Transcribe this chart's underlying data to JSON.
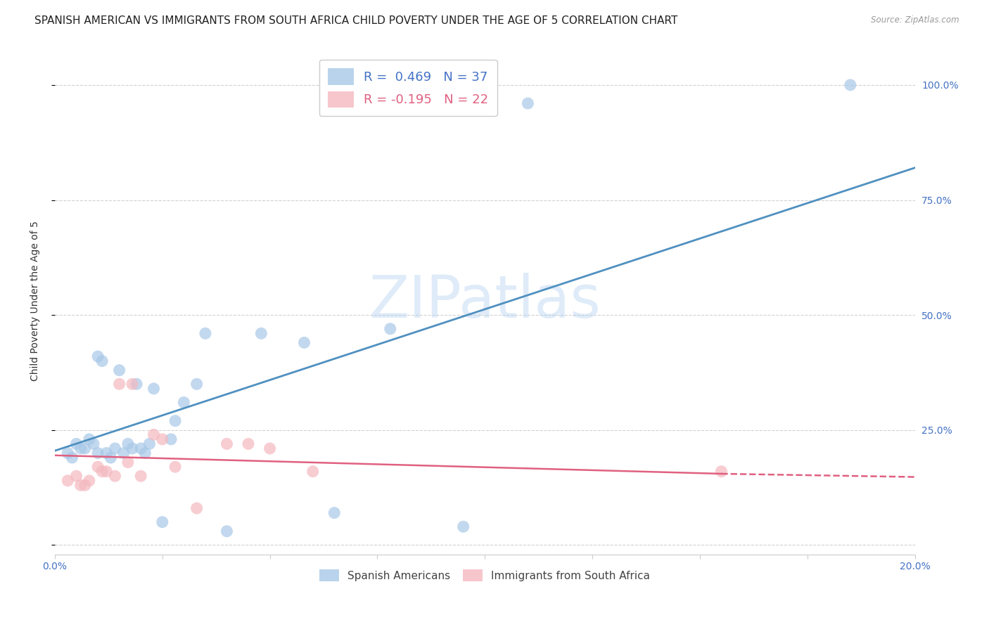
{
  "title": "SPANISH AMERICAN VS IMMIGRANTS FROM SOUTH AFRICA CHILD POVERTY UNDER THE AGE OF 5 CORRELATION CHART",
  "source": "Source: ZipAtlas.com",
  "ylabel": "Child Poverty Under the Age of 5",
  "xlim": [
    0.0,
    0.2
  ],
  "ylim": [
    -0.02,
    1.08
  ],
  "legend1_label": "R =  0.469   N = 37",
  "legend2_label": "R = -0.195   N = 22",
  "legend1_color": "#a8c8e8",
  "legend2_color": "#f4b8c0",
  "scatter1_color": "#a8c8e8",
  "scatter2_color": "#f4b8c0",
  "line1_color": "#4f90c0",
  "line2_color": "#e06080",
  "watermark": "ZIPatlas",
  "blue_scatter_x": [
    0.003,
    0.004,
    0.005,
    0.006,
    0.007,
    0.008,
    0.009,
    0.01,
    0.01,
    0.011,
    0.012,
    0.013,
    0.014,
    0.015,
    0.016,
    0.017,
    0.018,
    0.019,
    0.02,
    0.021,
    0.022,
    0.023,
    0.025,
    0.027,
    0.028,
    0.03,
    0.033,
    0.035,
    0.04,
    0.048,
    0.058,
    0.065,
    0.078,
    0.095,
    0.1,
    0.11,
    0.185
  ],
  "blue_scatter_y": [
    0.2,
    0.19,
    0.22,
    0.21,
    0.21,
    0.23,
    0.22,
    0.2,
    0.41,
    0.4,
    0.2,
    0.19,
    0.21,
    0.38,
    0.2,
    0.22,
    0.21,
    0.35,
    0.21,
    0.2,
    0.22,
    0.34,
    0.05,
    0.23,
    0.27,
    0.31,
    0.35,
    0.46,
    0.03,
    0.46,
    0.44,
    0.07,
    0.47,
    0.04,
    0.97,
    0.96,
    1.0
  ],
  "pink_scatter_x": [
    0.003,
    0.005,
    0.006,
    0.007,
    0.008,
    0.01,
    0.011,
    0.012,
    0.014,
    0.015,
    0.017,
    0.018,
    0.02,
    0.023,
    0.025,
    0.028,
    0.033,
    0.04,
    0.045,
    0.05,
    0.06,
    0.155
  ],
  "pink_scatter_y": [
    0.14,
    0.15,
    0.13,
    0.13,
    0.14,
    0.17,
    0.16,
    0.16,
    0.15,
    0.35,
    0.18,
    0.35,
    0.15,
    0.24,
    0.23,
    0.17,
    0.08,
    0.22,
    0.22,
    0.21,
    0.16,
    0.16
  ],
  "line1_x0": 0.0,
  "line1_y0": 0.205,
  "line1_x1": 0.2,
  "line1_y1": 0.82,
  "line2_solid_x0": 0.0,
  "line2_solid_y0": 0.195,
  "line2_solid_x1": 0.155,
  "line2_solid_y1": 0.155,
  "line2_dash_x0": 0.155,
  "line2_dash_y0": 0.155,
  "line2_dash_x1": 0.2,
  "line2_dash_y1": 0.148,
  "background_color": "#ffffff",
  "grid_color": "#cccccc",
  "title_fontsize": 11,
  "axis_label_fontsize": 10,
  "tick_fontsize": 10,
  "ytick_positions": [
    0.0,
    0.25,
    0.5,
    0.75,
    1.0
  ],
  "ytick_labels_right": [
    "",
    "25.0%",
    "50.0%",
    "75.0%",
    "100.0%"
  ]
}
